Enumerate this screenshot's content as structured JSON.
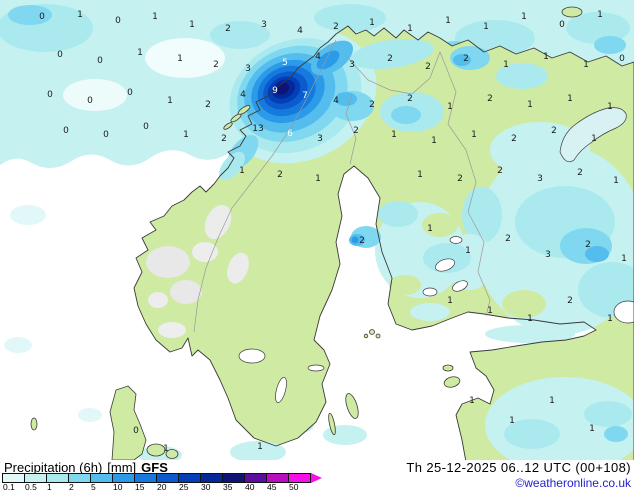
{
  "footer": {
    "product_label": "Precipitation (6h)",
    "unit": "[mm]",
    "model": "GFS",
    "datetime": "Th 25-12-2025 06..12 UTC (00+108)",
    "copyright": "©weatheronline.co.uk"
  },
  "legend": {
    "values": [
      "0.1",
      "0.5",
      "1",
      "2",
      "5",
      "10",
      "15",
      "20",
      "25",
      "30",
      "35",
      "40",
      "45",
      "50"
    ],
    "colors": [
      "#e2f8f8",
      "#c6f1f1",
      "#aaeaee",
      "#7fd8ef",
      "#54bdee",
      "#2b9ae8",
      "#1579dd",
      "#0b5bce",
      "#0340b8",
      "#02289a",
      "#101376",
      "#5a0f9e",
      "#b80ec0",
      "#f810e8"
    ],
    "arrow_color": "#f810e8"
  },
  "map": {
    "land_color": "#cfeaa2",
    "sea_color": "#ffffff",
    "coast_color": "#3a3a3a"
  },
  "map_values": [
    [
      42,
      16,
      "0"
    ],
    [
      80,
      14,
      "1"
    ],
    [
      118,
      20,
      "0"
    ],
    [
      155,
      16,
      "1"
    ],
    [
      192,
      24,
      "1"
    ],
    [
      228,
      28,
      "2"
    ],
    [
      264,
      24,
      "3"
    ],
    [
      300,
      30,
      "4"
    ],
    [
      336,
      26,
      "2"
    ],
    [
      372,
      22,
      "1"
    ],
    [
      410,
      28,
      "1"
    ],
    [
      448,
      20,
      "1"
    ],
    [
      486,
      26,
      "1"
    ],
    [
      524,
      16,
      "1"
    ],
    [
      562,
      24,
      "0"
    ],
    [
      600,
      14,
      "1"
    ],
    [
      60,
      54,
      "0"
    ],
    [
      100,
      60,
      "0"
    ],
    [
      140,
      52,
      "1"
    ],
    [
      180,
      58,
      "1"
    ],
    [
      216,
      64,
      "2"
    ],
    [
      248,
      68,
      "3"
    ],
    [
      285,
      62,
      "5",
      1
    ],
    [
      318,
      56,
      "4"
    ],
    [
      352,
      64,
      "3"
    ],
    [
      390,
      58,
      "2"
    ],
    [
      428,
      66,
      "2"
    ],
    [
      466,
      58,
      "2"
    ],
    [
      506,
      64,
      "1"
    ],
    [
      546,
      56,
      "1"
    ],
    [
      586,
      64,
      "1"
    ],
    [
      622,
      58,
      "0"
    ],
    [
      50,
      94,
      "0"
    ],
    [
      90,
      100,
      "0"
    ],
    [
      130,
      92,
      "0"
    ],
    [
      170,
      100,
      "1"
    ],
    [
      208,
      104,
      "2"
    ],
    [
      243,
      94,
      "4"
    ],
    [
      275,
      90,
      "9",
      1
    ],
    [
      305,
      95,
      "7",
      1
    ],
    [
      336,
      100,
      "4"
    ],
    [
      372,
      104,
      "2"
    ],
    [
      410,
      98,
      "2"
    ],
    [
      450,
      106,
      "1"
    ],
    [
      490,
      98,
      "2"
    ],
    [
      530,
      104,
      "1"
    ],
    [
      570,
      98,
      "1"
    ],
    [
      610,
      106,
      "1"
    ],
    [
      66,
      130,
      "0"
    ],
    [
      106,
      134,
      "0"
    ],
    [
      146,
      126,
      "0"
    ],
    [
      186,
      134,
      "1"
    ],
    [
      224,
      138,
      "2"
    ],
    [
      258,
      128,
      "13"
    ],
    [
      290,
      133,
      "6",
      1
    ],
    [
      320,
      138,
      "3"
    ],
    [
      356,
      130,
      "2"
    ],
    [
      394,
      134,
      "1"
    ],
    [
      434,
      140,
      "1"
    ],
    [
      474,
      134,
      "1"
    ],
    [
      514,
      138,
      "2"
    ],
    [
      554,
      130,
      "2"
    ],
    [
      594,
      138,
      "1"
    ],
    [
      242,
      170,
      "1"
    ],
    [
      280,
      174,
      "2"
    ],
    [
      318,
      178,
      "1"
    ],
    [
      420,
      174,
      "1"
    ],
    [
      460,
      178,
      "2"
    ],
    [
      500,
      170,
      "2"
    ],
    [
      540,
      178,
      "3"
    ],
    [
      580,
      172,
      "2"
    ],
    [
      616,
      180,
      "1"
    ],
    [
      362,
      240,
      "2"
    ],
    [
      430,
      228,
      "1"
    ],
    [
      468,
      250,
      "1"
    ],
    [
      508,
      238,
      "2"
    ],
    [
      548,
      254,
      "3"
    ],
    [
      588,
      244,
      "2"
    ],
    [
      624,
      258,
      "1"
    ],
    [
      450,
      300,
      "1"
    ],
    [
      490,
      310,
      "1"
    ],
    [
      530,
      318,
      "1"
    ],
    [
      570,
      300,
      "2"
    ],
    [
      610,
      318,
      "1"
    ],
    [
      472,
      400,
      "1"
    ],
    [
      512,
      420,
      "1"
    ],
    [
      552,
      400,
      "1"
    ],
    [
      592,
      428,
      "1"
    ],
    [
      136,
      430,
      "0"
    ],
    [
      166,
      448,
      "1"
    ],
    [
      260,
      446,
      "1"
    ]
  ]
}
